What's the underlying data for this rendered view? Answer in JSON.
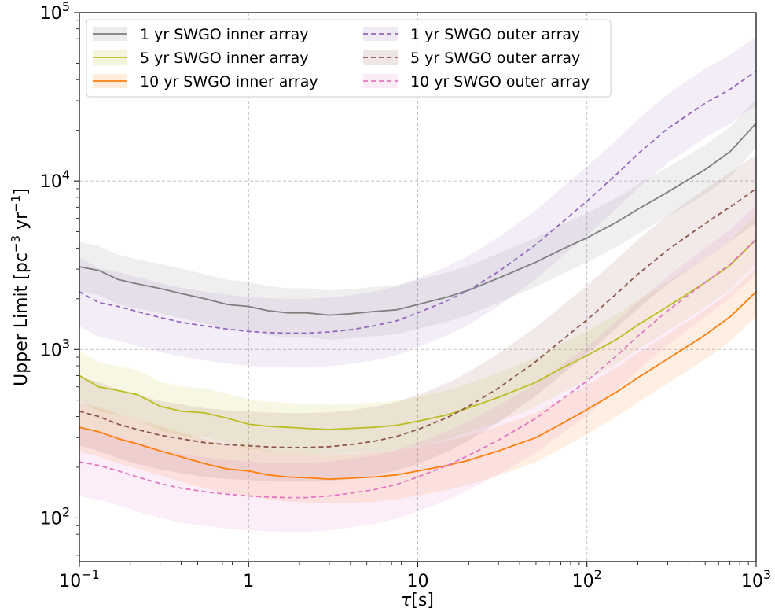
{
  "chart_data": {
    "type": "line",
    "xlabel_prefix": "τ",
    "xlabel_suffix": "[s]",
    "ylabel_prefix": "Upper Limit [pc",
    "ylabel_exp1": "−3",
    "ylabel_mid": " yr",
    "ylabel_exp2": "−1",
    "ylabel_suffix": "]",
    "x_scale": "log",
    "y_scale": "log",
    "xlim": [
      0.1,
      1000
    ],
    "ylim": [
      55,
      100000
    ],
    "grid": true,
    "legend_position": "top-left",
    "x_ticks": [
      {
        "value": 0.1,
        "base": "10",
        "exp": "−1"
      },
      {
        "value": 1,
        "base": "1",
        "exp": ""
      },
      {
        "value": 10,
        "base": "10",
        "exp": ""
      },
      {
        "value": 100,
        "base": "10",
        "exp": "2"
      },
      {
        "value": 1000,
        "base": "10",
        "exp": "3"
      }
    ],
    "y_ticks": [
      {
        "value": 100,
        "base": "10",
        "exp": "2"
      },
      {
        "value": 1000,
        "base": "10",
        "exp": "3"
      },
      {
        "value": 10000,
        "base": "10",
        "exp": "4"
      },
      {
        "value": 100000,
        "base": "10",
        "exp": "5"
      }
    ],
    "x": [
      0.1,
      0.13,
      0.17,
      0.22,
      0.3,
      0.4,
      0.55,
      0.75,
      1.0,
      1.3,
      1.7,
      2.2,
      3.0,
      4.0,
      5.5,
      7.5,
      10,
      15,
      20,
      30,
      50,
      70,
      100,
      150,
      200,
      300,
      500,
      700,
      1000
    ],
    "series": [
      {
        "name": "1 yr SWGO inner array",
        "color": "#7f7f7f",
        "dash": "solid",
        "band_factor": 1.4,
        "values": [
          3100,
          2950,
          2600,
          2450,
          2300,
          2150,
          2000,
          1850,
          1800,
          1700,
          1650,
          1650,
          1600,
          1630,
          1680,
          1720,
          1850,
          2050,
          2250,
          2650,
          3300,
          3900,
          4600,
          5700,
          6800,
          8600,
          11700,
          14900,
          22000
        ]
      },
      {
        "name": "5 yr SWGO inner array",
        "color": "#bcbd22",
        "dash": "solid",
        "band_factor": 1.4,
        "values": [
          700,
          600,
          570,
          540,
          460,
          430,
          420,
          390,
          360,
          350,
          345,
          340,
          335,
          340,
          345,
          355,
          375,
          410,
          450,
          520,
          640,
          770,
          920,
          1150,
          1400,
          1800,
          2500,
          3150,
          4500
        ]
      },
      {
        "name": "10 yr SWGO inner array",
        "color": "#ff7f0e",
        "dash": "solid",
        "band_factor": 1.4,
        "values": [
          345,
          325,
          295,
          275,
          250,
          230,
          210,
          195,
          190,
          180,
          175,
          173,
          170,
          172,
          175,
          180,
          190,
          205,
          220,
          250,
          300,
          360,
          440,
          560,
          680,
          880,
          1220,
          1560,
          2200
        ]
      },
      {
        "name": "1 yr SWGO outer array",
        "color": "#9467bd",
        "dash": "dashed",
        "band_factor": 1.6,
        "values": [
          2200,
          1900,
          1800,
          1680,
          1550,
          1450,
          1380,
          1320,
          1280,
          1260,
          1250,
          1250,
          1270,
          1310,
          1380,
          1480,
          1650,
          1950,
          2250,
          2900,
          4200,
          5600,
          7600,
          11000,
          14500,
          20500,
          29000,
          35000,
          45000
        ]
      },
      {
        "name": "5 yr SWGO outer array",
        "color": "#8c564b",
        "dash": "dashed",
        "band_factor": 1.6,
        "values": [
          430,
          400,
          360,
          335,
          310,
          295,
          280,
          272,
          268,
          264,
          262,
          262,
          265,
          272,
          285,
          305,
          335,
          395,
          460,
          590,
          850,
          1120,
          1500,
          2150,
          2800,
          3900,
          5600,
          7000,
          9000
        ]
      },
      {
        "name": "10 yr SWGO outer array",
        "color": "#e377c2",
        "dash": "dashed",
        "band_factor": 1.6,
        "values": [
          215,
          205,
          190,
          175,
          160,
          150,
          143,
          138,
          135,
          133,
          132,
          132,
          135,
          140,
          147,
          158,
          175,
          205,
          235,
          290,
          390,
          500,
          650,
          920,
          1200,
          1700,
          2500,
          3200,
          4500
        ]
      }
    ]
  }
}
